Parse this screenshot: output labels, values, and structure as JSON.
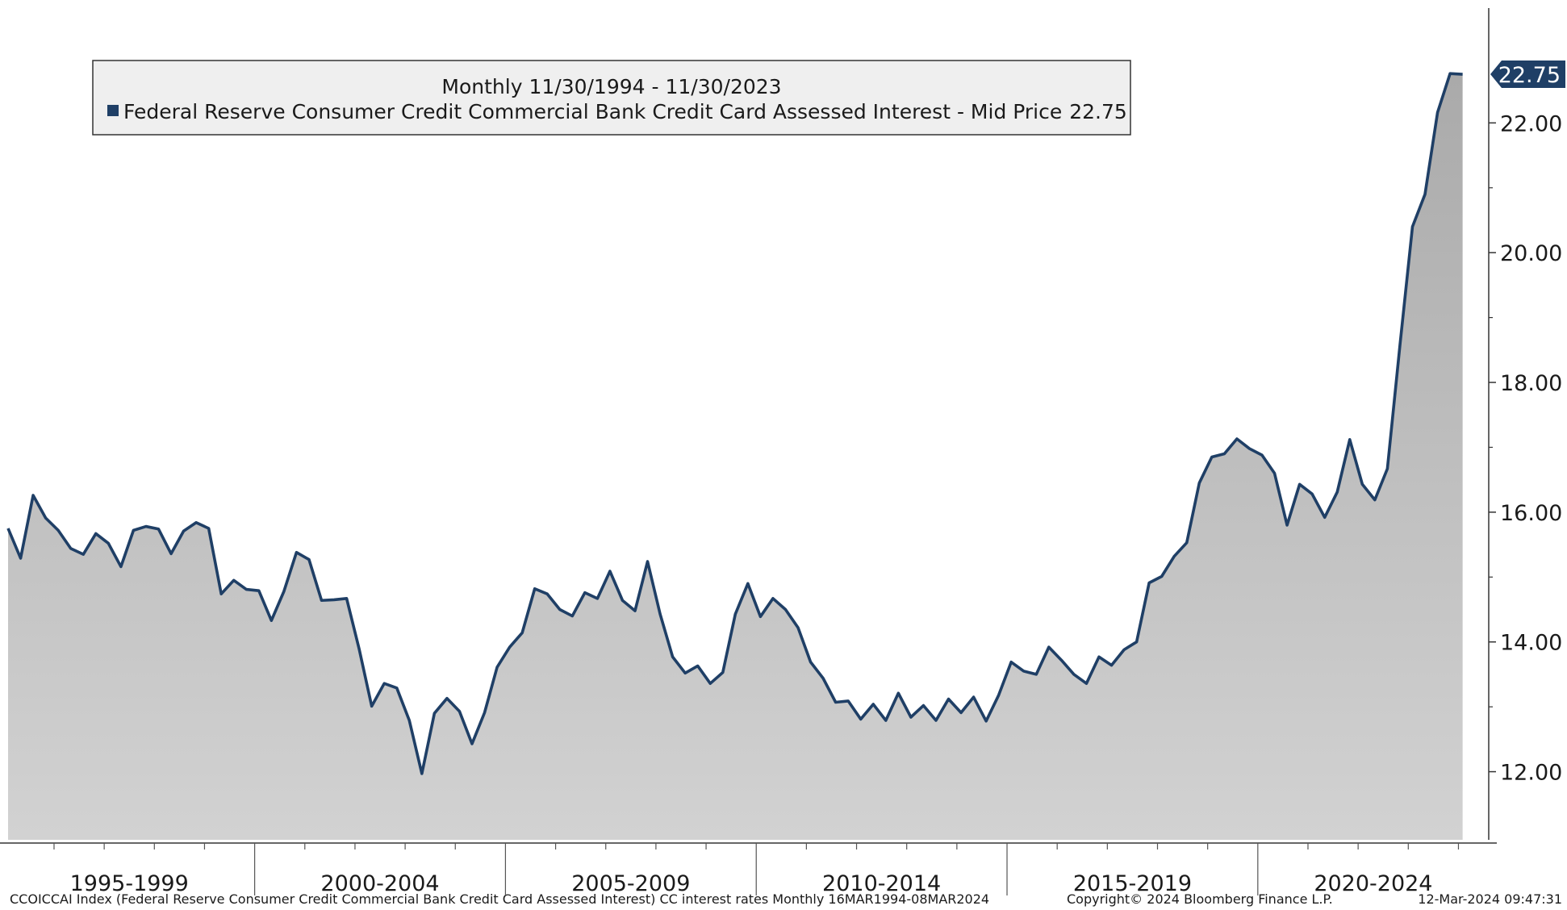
{
  "chart_data": {
    "type": "area",
    "subtitle": "Monthly 11/30/1994 - 11/30/2023",
    "footer_left": "CCOICCAI Index (Federal Reserve Consumer Credit Commercial Bank Credit Card Assessed Interest) CC interest rates  Monthly 16MAR1994-08MAR2024",
    "footer_center": "Copyright© 2024 Bloomberg Finance L.P.",
    "footer_right": "12-Mar-2024 09:47:31",
    "periods": [
      "1995-1999",
      "2000-2004",
      "2005-2009",
      "2010-2014",
      "2015-2019",
      "2020-2024"
    ],
    "series": [
      {
        "name": "Federal Reserve Consumer Credit Commercial Bank Credit Card Assessed Interest - Mid Price",
        "color": "#1f3f66",
        "values": [
          15.75,
          15.29,
          16.26,
          15.91,
          15.72,
          15.44,
          15.35,
          15.67,
          15.52,
          15.16,
          15.72,
          15.78,
          15.74,
          15.36,
          15.71,
          15.84,
          15.75,
          14.74,
          14.95,
          14.81,
          14.79,
          14.33,
          14.78,
          15.38,
          15.27,
          14.64,
          14.65,
          14.67,
          13.89,
          13.01,
          13.36,
          13.29,
          12.79,
          11.97,
          12.9,
          13.13,
          12.93,
          12.43,
          12.91,
          13.61,
          13.92,
          14.14,
          14.82,
          14.74,
          14.5,
          14.4,
          14.76,
          14.67,
          15.09,
          14.64,
          14.48,
          15.24,
          14.43,
          13.77,
          13.52,
          13.63,
          13.36,
          13.53,
          14.43,
          14.9,
          14.39,
          14.67,
          14.5,
          14.22,
          13.69,
          13.44,
          13.07,
          13.09,
          12.81,
          13.04,
          12.79,
          13.21,
          12.84,
          13.02,
          12.79,
          13.12,
          12.91,
          13.15,
          12.78,
          13.18,
          13.69,
          13.55,
          13.5,
          13.92,
          13.72,
          13.5,
          13.36,
          13.77,
          13.64,
          13.88,
          14.0,
          14.91,
          15.01,
          15.32,
          15.53,
          16.45,
          16.85,
          16.9,
          17.13,
          16.98,
          16.88,
          16.6,
          15.8,
          16.43,
          16.28,
          15.92,
          16.31,
          17.12,
          16.43,
          16.19,
          16.67,
          18.57,
          20.4,
          20.9,
          22.16,
          22.76,
          22.75
        ]
      }
    ],
    "ylim": [
      10.95,
      23.77
    ],
    "yticks": [
      {
        "value": 12,
        "label": "12.00"
      },
      {
        "value": 14,
        "label": "14.00"
      },
      {
        "value": 16,
        "label": "16.00"
      },
      {
        "value": 18,
        "label": "18.00"
      },
      {
        "value": 20,
        "label": "20.00"
      },
      {
        "value": 22,
        "label": "22.00"
      }
    ],
    "y_axis_side": "right",
    "grid": false
  }
}
